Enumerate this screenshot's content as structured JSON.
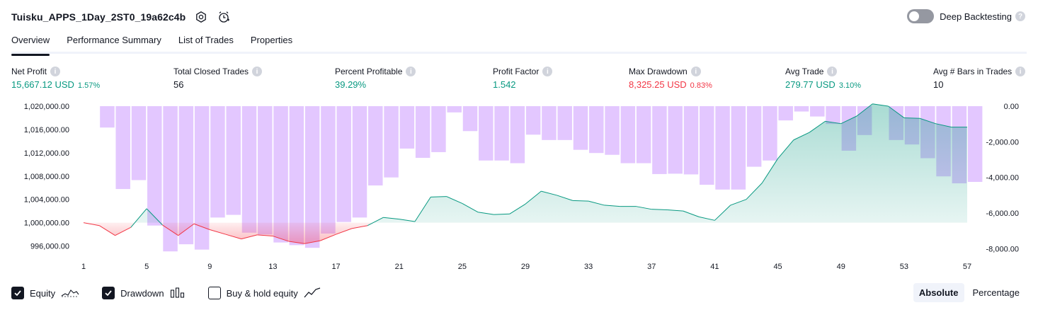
{
  "header": {
    "title": "Tuisku_APPS_1Day_2ST0_19a62c4b",
    "deep_backtesting_label": "Deep Backtesting",
    "help_glyph": "?"
  },
  "tabs": [
    {
      "label": "Overview",
      "active": true
    },
    {
      "label": "Performance Summary",
      "active": false
    },
    {
      "label": "List of Trades",
      "active": false
    },
    {
      "label": "Properties",
      "active": false
    }
  ],
  "stats": {
    "net_profit": {
      "label": "Net Profit",
      "value": "15,667.12 USD",
      "pct": "1.57%"
    },
    "total_closed_trades": {
      "label": "Total Closed Trades",
      "value": "56"
    },
    "percent_profitable": {
      "label": "Percent Profitable",
      "value": "39.29%"
    },
    "profit_factor": {
      "label": "Profit Factor",
      "value": "1.542"
    },
    "max_drawdown": {
      "label": "Max Drawdown",
      "value": "8,325.25 USD",
      "pct": "0.83%"
    },
    "avg_trade": {
      "label": "Avg Trade",
      "value": "279.77 USD",
      "pct": "3.10%"
    },
    "avg_bars": {
      "label": "Avg # Bars in Trades",
      "value": "10"
    }
  },
  "colors": {
    "profit": "#089981",
    "loss": "#f23645",
    "drawdown_bar": "#e1c4ff",
    "equity_fill": "#dff2ec"
  },
  "footer": {
    "equity_label": "Equity",
    "equity_checked": true,
    "drawdown_label": "Drawdown",
    "drawdown_checked": true,
    "buyhold_label": "Buy & hold equity",
    "buyhold_checked": false,
    "absolute_label": "Absolute",
    "percentage_label": "Percentage",
    "mode": "Absolute"
  },
  "chart_data": {
    "type": "line",
    "baseline": 1000000,
    "left_ticks": [
      "1,020,000.00",
      "1,016,000.00",
      "1,012,000.00",
      "1,008,000.00",
      "1,004,000.00",
      "1,000,000.00",
      "996,000.00"
    ],
    "right_ticks": [
      "0.00",
      "-2,000.00",
      "-4,000.00",
      "-6,000.00",
      "-8,000.00"
    ],
    "x_ticks": [
      "1",
      "5",
      "9",
      "13",
      "17",
      "21",
      "25",
      "29",
      "33",
      "37",
      "41",
      "45",
      "49",
      "53",
      "57"
    ],
    "y_left_range": [
      994000,
      1020000
    ],
    "y_right_range": [
      -8500,
      0
    ],
    "series": [
      {
        "name": "Equity",
        "x": [
          1,
          2,
          3,
          4,
          5,
          6,
          7,
          8,
          9,
          10,
          11,
          12,
          13,
          14,
          15,
          16,
          17,
          18,
          19,
          20,
          21,
          22,
          23,
          24,
          25,
          26,
          27,
          28,
          29,
          30,
          31,
          32,
          33,
          34,
          35,
          36,
          37,
          38,
          39,
          40,
          41,
          42,
          43,
          44,
          45,
          46,
          47,
          48,
          49,
          50,
          51,
          52,
          53,
          54,
          55,
          56,
          57
        ],
        "values": [
          1000000,
          999500,
          997800,
          999200,
          1002400,
          999600,
          997800,
          999800,
          998800,
          998000,
          997200,
          997900,
          997700,
          996800,
          996400,
          996900,
          998000,
          999000,
          999500,
          1000900,
          1000600,
          1000200,
          1004400,
          1004500,
          1003300,
          1001800,
          1001400,
          1001500,
          1003200,
          1005400,
          1004700,
          1003800,
          1003700,
          1003000,
          1002800,
          1002800,
          1002300,
          1002200,
          1002000,
          1001000,
          1000400,
          1003000,
          1004000,
          1006800,
          1011000,
          1014200,
          1015500,
          1017400,
          1017000,
          1018300,
          1020400,
          1020000,
          1018000,
          1017900,
          1017000,
          1016400,
          1016400
        ]
      },
      {
        "name": "Drawdown",
        "x": [
          1,
          2,
          3,
          4,
          5,
          6,
          7,
          8,
          9,
          10,
          11,
          12,
          13,
          14,
          15,
          16,
          17,
          18,
          19,
          20,
          21,
          22,
          23,
          24,
          25,
          26,
          27,
          28,
          29,
          30,
          31,
          32,
          33,
          34,
          35,
          36,
          37,
          38,
          39,
          40,
          41,
          42,
          43,
          44,
          45,
          46,
          47,
          48,
          49,
          50,
          51,
          52,
          53,
          54,
          55,
          56,
          57
        ],
        "values": [
          0,
          -1200,
          -4650,
          -4150,
          -6700,
          -8150,
          -7750,
          -8050,
          -6250,
          -6100,
          -7100,
          -7200,
          -7650,
          -7800,
          -7950,
          -7150,
          -6500,
          -6250,
          -4450,
          -4000,
          -2380,
          -2900,
          -2580,
          -350,
          -1400,
          -3050,
          -3050,
          -3200,
          -1600,
          -1900,
          -1900,
          -2450,
          -2630,
          -2730,
          -3200,
          -3200,
          -3810,
          -3790,
          -3830,
          -4410,
          -4680,
          -4680,
          -3400,
          -3050,
          -800,
          -300,
          -580,
          -1000,
          -2500,
          -1620,
          0,
          -1900,
          -2150,
          -2920,
          -3940,
          -4330,
          -4250
        ]
      }
    ]
  }
}
